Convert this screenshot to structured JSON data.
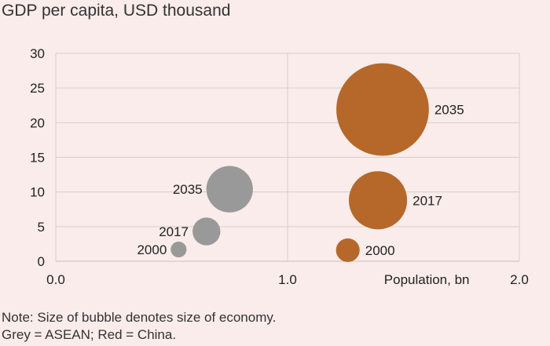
{
  "chart_data": {
    "type": "scatter",
    "title": "GDP per capita, USD thousand",
    "xlabel": "Population, bn",
    "xlim": [
      0,
      2
    ],
    "ylim": [
      0,
      30
    ],
    "xticks": [
      "0.0",
      "1.0",
      "2.0"
    ],
    "yticks": [
      "0",
      "5",
      "10",
      "15",
      "20",
      "25",
      "30"
    ],
    "grid": true,
    "bubble_size_meaning": "size of economy",
    "series": [
      {
        "group": "ASEAN",
        "color": "#999999",
        "label_side": "left",
        "points": [
          {
            "label": "2000",
            "x": 0.53,
            "y": 1.7
          },
          {
            "label": "2017",
            "x": 0.65,
            "y": 4.3
          },
          {
            "label": "2035",
            "x": 0.75,
            "y": 10.4
          }
        ]
      },
      {
        "group": "China",
        "color": "#b5682a",
        "label_side": "right",
        "points": [
          {
            "label": "2000",
            "x": 1.26,
            "y": 1.6
          },
          {
            "label": "2017",
            "x": 1.39,
            "y": 8.8
          },
          {
            "label": "2035",
            "x": 1.41,
            "y": 21.9
          }
        ]
      }
    ]
  },
  "note": {
    "line1": "Note: Size of bubble denotes size of economy.",
    "line2": "Grey = ASEAN; Red = China."
  }
}
